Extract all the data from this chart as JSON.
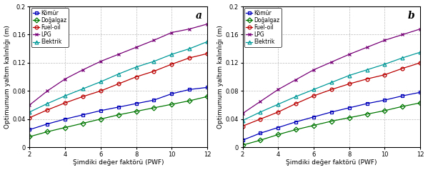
{
  "x": [
    2,
    3,
    4,
    5,
    6,
    7,
    8,
    9,
    10,
    11,
    12
  ],
  "panel_a": {
    "komur": [
      0.025,
      0.033,
      0.04,
      0.046,
      0.052,
      0.057,
      0.062,
      0.067,
      0.076,
      0.082,
      0.085
    ],
    "dogalgaz": [
      0.015,
      0.022,
      0.028,
      0.034,
      0.04,
      0.046,
      0.051,
      0.056,
      0.061,
      0.066,
      0.072
    ],
    "fueloil": [
      0.042,
      0.053,
      0.063,
      0.072,
      0.08,
      0.09,
      0.1,
      0.108,
      0.118,
      0.127,
      0.133
    ],
    "lpg": [
      0.06,
      0.08,
      0.097,
      0.11,
      0.122,
      0.132,
      0.142,
      0.152,
      0.163,
      0.168,
      0.175
    ],
    "elektrik": [
      0.05,
      0.062,
      0.073,
      0.083,
      0.093,
      0.104,
      0.114,
      0.122,
      0.132,
      0.14,
      0.15
    ]
  },
  "panel_b": {
    "komur": [
      0.01,
      0.02,
      0.028,
      0.036,
      0.043,
      0.05,
      0.056,
      0.062,
      0.067,
      0.073,
      0.078
    ],
    "dogalgaz": [
      0.003,
      0.01,
      0.018,
      0.025,
      0.031,
      0.037,
      0.042,
      0.047,
      0.052,
      0.058,
      0.063
    ],
    "fueloil": [
      0.03,
      0.04,
      0.05,
      0.062,
      0.073,
      0.082,
      0.09,
      0.097,
      0.103,
      0.112,
      0.12
    ],
    "lpg": [
      0.048,
      0.065,
      0.082,
      0.096,
      0.11,
      0.121,
      0.132,
      0.142,
      0.152,
      0.16,
      0.168
    ],
    "elektrik": [
      0.038,
      0.05,
      0.061,
      0.072,
      0.082,
      0.092,
      0.102,
      0.11,
      0.118,
      0.127,
      0.135
    ]
  },
  "colors": {
    "komur": "#0000bb",
    "dogalgaz": "#007700",
    "fueloil": "#bb0000",
    "lpg": "#770077",
    "elektrik": "#009999"
  },
  "markers": {
    "komur": "s",
    "dogalgaz": "D",
    "fueloil": "o",
    "lpg": "x",
    "elektrik": "^"
  },
  "labels": {
    "komur": "Kömür",
    "dogalgaz": "Doğalgaz",
    "fueloil": "Fuel-oil",
    "lpg": "LPG",
    "elektrik": "Elektrik"
  },
  "xlabel": "Şimdiki değer faktörü (PWF)",
  "ylabel": "Optimumum yaltım kalınlığı (m)",
  "ylim": [
    0,
    0.2
  ],
  "xlim": [
    2,
    12
  ],
  "yticks": [
    0,
    0.04,
    0.08,
    0.12,
    0.16,
    0.2
  ],
  "xticks": [
    2,
    4,
    6,
    8,
    10,
    12
  ],
  "panel_labels": [
    "a",
    "b"
  ],
  "background_color": "#ffffff",
  "grid_color": "#aaaaaa",
  "tick_fontsize": 6,
  "label_fontsize": 6.5,
  "legend_fontsize": 5.5,
  "marker_size": 3.5,
  "line_width": 0.9
}
